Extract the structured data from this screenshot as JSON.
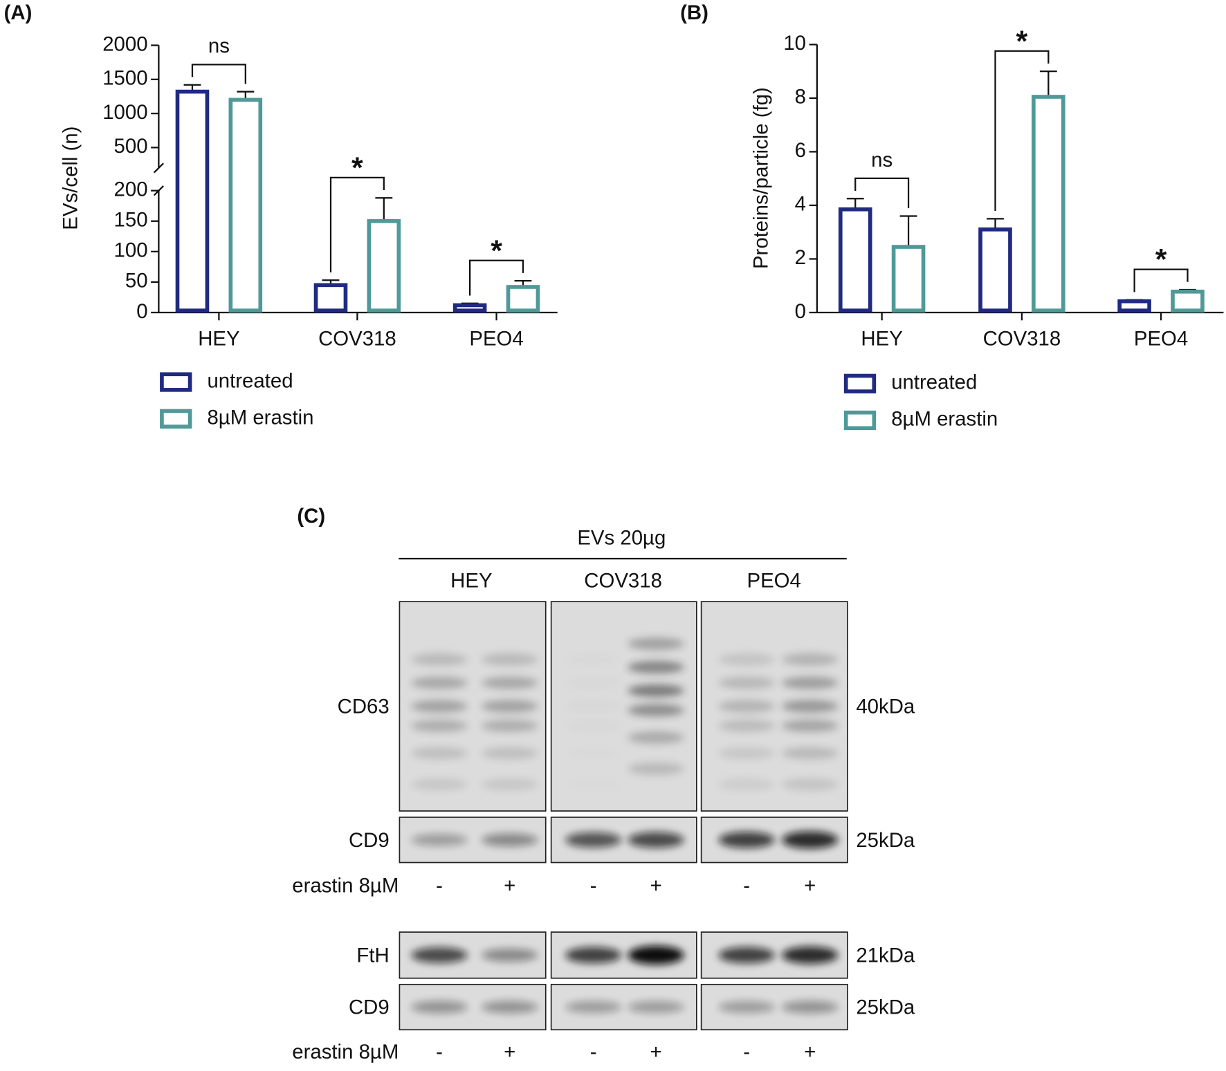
{
  "chart_data": [
    {
      "type": "bar",
      "panel_label": "(A)",
      "ylabel": "EVs/cell (n)",
      "categories": [
        "HEY",
        "COV318",
        "PEO4"
      ],
      "series": [
        {
          "name": "untreated",
          "color": "#1f2a80",
          "values": [
            1320,
            45,
            12
          ],
          "errors": [
            100,
            8,
            3
          ]
        },
        {
          "name": "8µM erastin",
          "color": "#4f9a98",
          "values": [
            1200,
            150,
            42
          ],
          "errors": [
            120,
            38,
            10
          ]
        }
      ],
      "axis_segments": [
        {
          "ylim": [
            0,
            200
          ],
          "yticks": [
            0,
            50,
            100,
            150,
            200
          ]
        },
        {
          "ylim": [
            200,
            2000
          ],
          "yticks": [
            500,
            1000,
            1500,
            2000
          ]
        }
      ],
      "annotations": [
        "ns",
        "*",
        "*"
      ]
    },
    {
      "type": "bar",
      "panel_label": "(B)",
      "ylabel": "Proteins/particle (fg)",
      "categories": [
        "HEY",
        "COV318",
        "PEO4"
      ],
      "series": [
        {
          "name": "untreated",
          "color": "#1f2a80",
          "values": [
            3.85,
            3.1,
            0.42
          ],
          "errors": [
            0.4,
            0.4,
            0.05
          ]
        },
        {
          "name": "8µM erastin",
          "color": "#4f9a98",
          "values": [
            2.45,
            8.05,
            0.78
          ],
          "errors": [
            1.15,
            0.95,
            0.07
          ]
        }
      ],
      "ylim": [
        0,
        10
      ],
      "yticks": [
        0,
        2,
        4,
        6,
        8,
        10
      ],
      "annotations": [
        "ns",
        "*",
        "*"
      ]
    }
  ],
  "blot": {
    "panel_label": "(C)",
    "title": "EVs 20µg",
    "columns": [
      "HEY",
      "COV318",
      "PEO4"
    ],
    "blocks": [
      {
        "rows": [
          {
            "label": "CD63",
            "size": "40kDa"
          },
          {
            "label": "CD9",
            "size": "25kDa"
          }
        ],
        "treatment": "erastin 8µM",
        "lanes": [
          "-",
          "+",
          "-",
          "+",
          "-",
          "+"
        ]
      },
      {
        "rows": [
          {
            "label": "FtH",
            "size": "21kDa"
          },
          {
            "label": "CD9",
            "size": "25kDa"
          }
        ],
        "treatment": "erastin 8µM",
        "lanes": [
          "-",
          "+",
          "-",
          "+",
          "-",
          "+"
        ]
      }
    ]
  }
}
